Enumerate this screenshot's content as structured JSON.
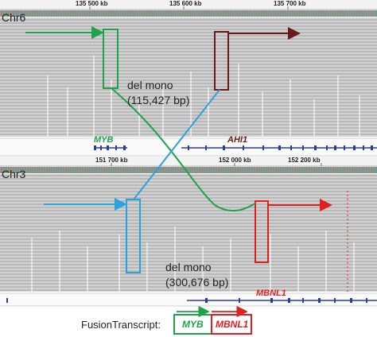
{
  "top_track": {
    "chromosome": "Chr6",
    "ruler_ticks": [
      "135 500 kb",
      "135 600 kb",
      "135 700 kb"
    ],
    "deletion_label": "del mono",
    "deletion_size": "(115,427 bp)",
    "genes": [
      "MYB",
      "AHI1"
    ],
    "colors": {
      "left_gene": "#1fa34a",
      "right_gene": "#6b1a1a"
    }
  },
  "bottom_track": {
    "chromosome": "Chr3",
    "ruler_ticks": [
      "151 700 kb",
      "152 000 kb",
      "152 200 kb"
    ],
    "deletion_label": "del mono",
    "deletion_size": "(300,676 bp)",
    "genes": [
      "MBNL1"
    ],
    "colors": {
      "left_breakpoint": "#29a3e0",
      "right_gene": "#e02020"
    }
  },
  "fusion": {
    "label": "FusionTranscript:",
    "gene_a": "MYB",
    "gene_b": "MBNL1",
    "colors": {
      "gene_a": "#1fa34a",
      "gene_b": "#e02020"
    }
  }
}
